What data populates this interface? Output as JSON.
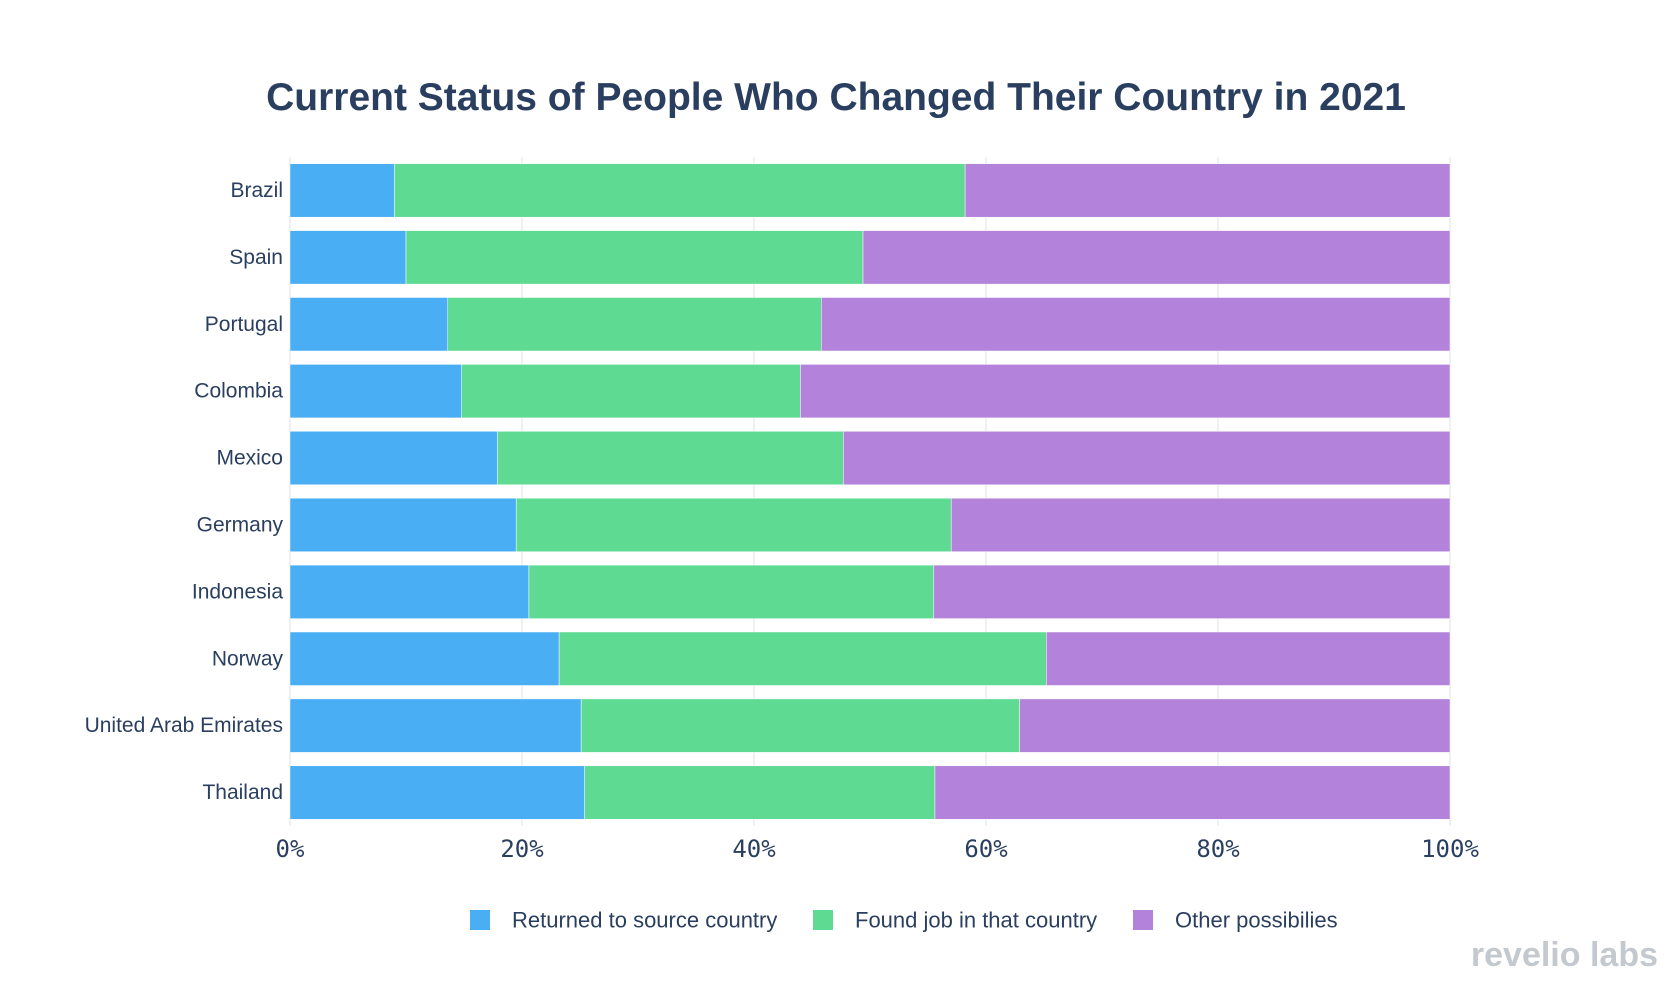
{
  "chart_data": {
    "type": "bar",
    "orientation": "horizontal",
    "stacked": true,
    "title": "Current Status of People Who Changed Their Country in 2021",
    "categories": [
      "Brazil",
      "Spain",
      "Portugal",
      "Colombia",
      "Mexico",
      "Germany",
      "Indonesia",
      "Norway",
      "United Arab Emirates",
      "Thailand"
    ],
    "series": [
      {
        "name": "Returned to source country",
        "color": "#4aaef5",
        "values": [
          9.0,
          10.0,
          13.6,
          14.8,
          17.9,
          19.5,
          20.6,
          23.2,
          25.1,
          25.4
        ]
      },
      {
        "name": "Found job in that country",
        "color": "#5fda93",
        "values": [
          49.2,
          39.4,
          32.2,
          29.2,
          29.8,
          37.5,
          34.9,
          42.0,
          37.8,
          30.2
        ]
      },
      {
        "name": "Other possibilies",
        "color": "#b383db",
        "values": [
          41.8,
          50.6,
          54.2,
          56.0,
          52.3,
          43.0,
          44.5,
          34.8,
          37.1,
          44.4
        ]
      }
    ],
    "xlim": [
      0,
      100
    ],
    "xticks": [
      "0%",
      "20%",
      "40%",
      "60%",
      "80%",
      "100%"
    ],
    "xlabel": "",
    "ylabel": "",
    "grid": true,
    "legend_position": "bottom"
  },
  "watermark": "revelio labs"
}
